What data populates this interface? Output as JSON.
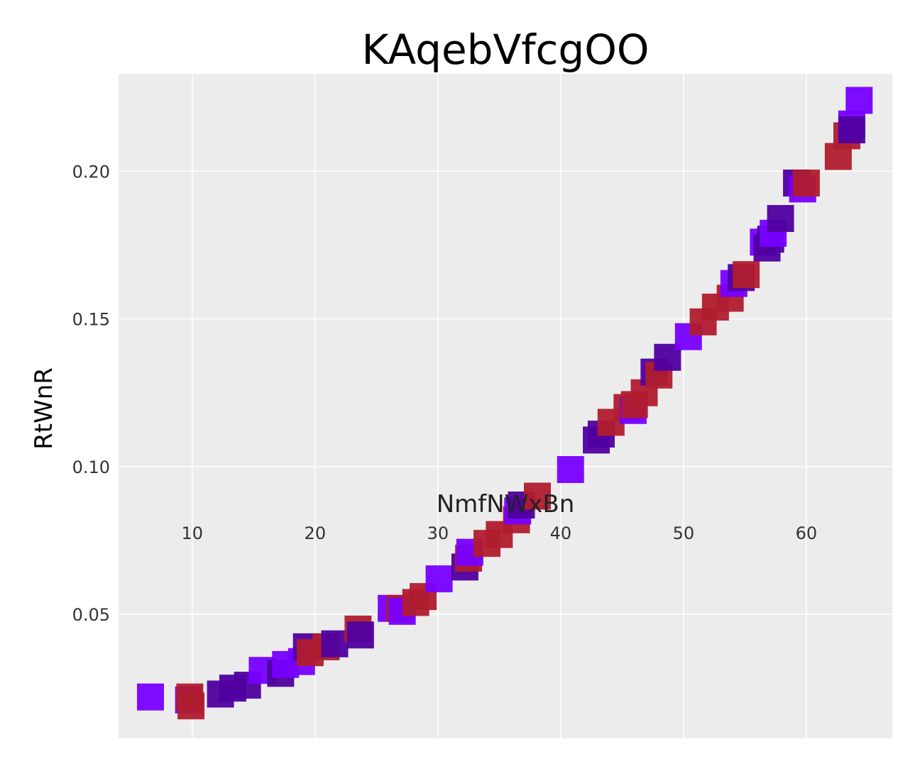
{
  "chart_data": {
    "type": "scatter",
    "title": "KAqebVfcgOO",
    "xlabel": "NmfNWxBn",
    "ylabel": "RtWnR",
    "xlim": [
      4,
      67
    ],
    "ylim": [
      0.008,
      0.233
    ],
    "x_ticks": [
      "10",
      "20",
      "30",
      "40",
      "50",
      "60"
    ],
    "y_ticks": [
      "0.05",
      "0.10",
      "0.15",
      "0.20"
    ],
    "grid": true,
    "marker": "square",
    "series": [
      {
        "color": "#7700ff",
        "points": [
          [
            6.6,
            0.022
          ],
          [
            9.7,
            0.021
          ],
          [
            15.7,
            0.031
          ],
          [
            17.6,
            0.033
          ],
          [
            18.9,
            0.034
          ],
          [
            26.2,
            0.052
          ],
          [
            27.1,
            0.051
          ],
          [
            30.1,
            0.062
          ],
          [
            32.6,
            0.071
          ],
          [
            36.5,
            0.085
          ],
          [
            40.8,
            0.099
          ],
          [
            45.9,
            0.119
          ],
          [
            50.4,
            0.144
          ],
          [
            54.1,
            0.162
          ],
          [
            56.5,
            0.176
          ],
          [
            57.3,
            0.179
          ],
          [
            59.7,
            0.194
          ],
          [
            63.7,
            0.216
          ],
          [
            64.3,
            0.224
          ]
        ]
      },
      {
        "color": "#5000a0",
        "points": [
          [
            12.3,
            0.023
          ],
          [
            13.3,
            0.025
          ],
          [
            14.5,
            0.026
          ],
          [
            17.2,
            0.03
          ],
          [
            19.3,
            0.039
          ],
          [
            21.6,
            0.04
          ],
          [
            23.7,
            0.043
          ],
          [
            32.2,
            0.066
          ],
          [
            36.8,
            0.087
          ],
          [
            42.9,
            0.109
          ],
          [
            43.3,
            0.111
          ],
          [
            47.6,
            0.132
          ],
          [
            48.7,
            0.137
          ],
          [
            54.7,
            0.164
          ],
          [
            56.8,
            0.174
          ],
          [
            57.1,
            0.177
          ],
          [
            57.9,
            0.184
          ],
          [
            59.2,
            0.196
          ],
          [
            63.7,
            0.214
          ]
        ]
      },
      {
        "color": "#b01c2e",
        "points": [
          [
            9.8,
            0.022
          ],
          [
            9.9,
            0.019
          ],
          [
            19.6,
            0.037
          ],
          [
            20.9,
            0.039
          ],
          [
            23.5,
            0.045
          ],
          [
            26.9,
            0.052
          ],
          [
            28.2,
            0.054
          ],
          [
            28.8,
            0.056
          ],
          [
            32.5,
            0.069
          ],
          [
            34.0,
            0.074
          ],
          [
            35.0,
            0.077
          ],
          [
            36.4,
            0.082
          ],
          [
            38.1,
            0.09
          ],
          [
            44.1,
            0.115
          ],
          [
            45.4,
            0.12
          ],
          [
            46.0,
            0.121
          ],
          [
            46.8,
            0.125
          ],
          [
            48.0,
            0.131
          ],
          [
            51.6,
            0.149
          ],
          [
            52.6,
            0.154
          ],
          [
            53.8,
            0.157
          ],
          [
            55.1,
            0.165
          ],
          [
            60.0,
            0.196
          ],
          [
            62.6,
            0.205
          ],
          [
            63.3,
            0.212
          ]
        ]
      }
    ]
  }
}
